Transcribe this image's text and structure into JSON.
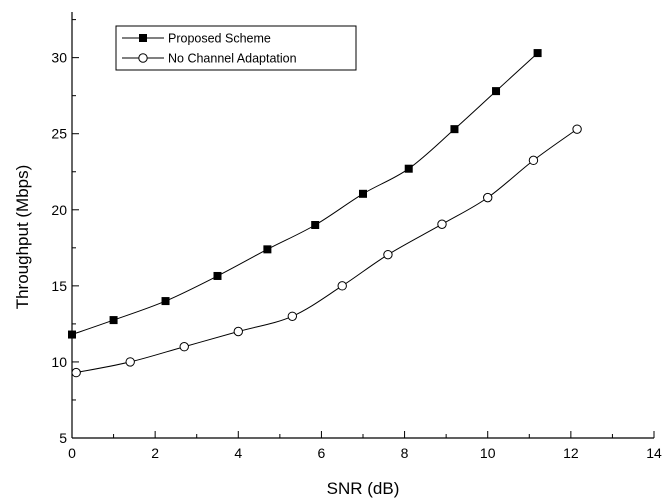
{
  "chart_data": {
    "type": "line",
    "xlabel": "SNR (dB)",
    "ylabel": "Throughput (Mbps)",
    "xlim": [
      0,
      14
    ],
    "ylim": [
      5,
      33
    ],
    "xticks": [
      0,
      2,
      4,
      6,
      8,
      10,
      12,
      14
    ],
    "yticks": [
      5,
      10,
      15,
      20,
      25,
      30
    ],
    "legend_position": "top-left",
    "grid": false,
    "series": [
      {
        "name": "Proposed Scheme",
        "marker": "filled-square",
        "color": "#000000",
        "x": [
          0.0,
          1.0,
          2.25,
          3.5,
          4.7,
          5.85,
          7.0,
          8.1,
          9.2,
          10.2,
          11.2
        ],
        "y": [
          11.8,
          12.75,
          14.0,
          15.65,
          17.4,
          19.0,
          21.05,
          22.7,
          25.3,
          27.8,
          30.3
        ]
      },
      {
        "name": "No Channel Adaptation",
        "marker": "open-circle",
        "color": "#000000",
        "x": [
          0.1,
          1.4,
          2.7,
          4.0,
          5.3,
          6.5,
          7.6,
          8.9,
          10.0,
          11.1,
          12.15
        ],
        "y": [
          9.3,
          10.0,
          11.0,
          12.0,
          13.0,
          15.0,
          17.05,
          19.05,
          20.8,
          23.25,
          25.3
        ]
      }
    ]
  }
}
